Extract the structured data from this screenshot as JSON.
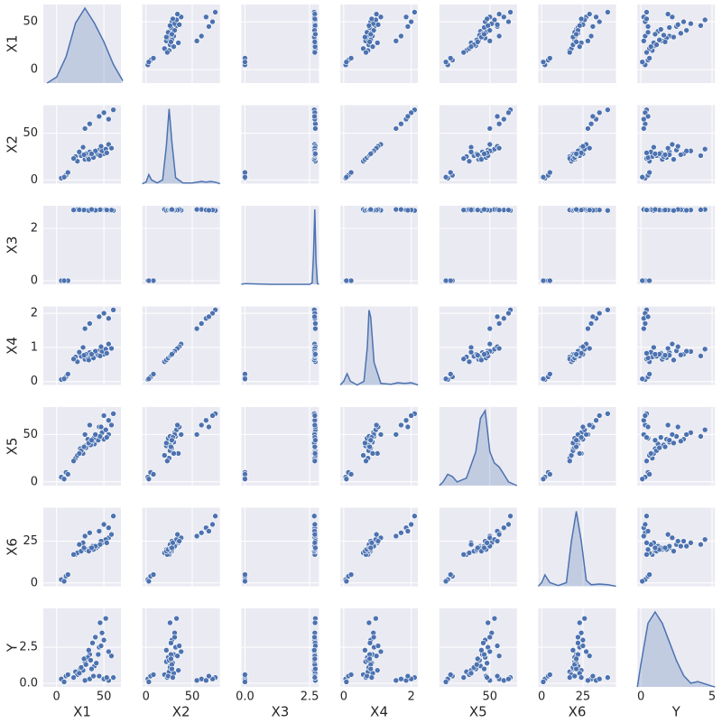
{
  "chart_data": {
    "type": "pairplot",
    "color": "#4c72b0",
    "grid": true,
    "variables": [
      {
        "name": "X1",
        "values": [
          5,
          10,
          12,
          8,
          35,
          55,
          60,
          50,
          30,
          45,
          20,
          25,
          30,
          35,
          40,
          28,
          45,
          50,
          55,
          22,
          33,
          38,
          42,
          48,
          52,
          18,
          26,
          31,
          36,
          44,
          47,
          58,
          24,
          34,
          39,
          46,
          29,
          41,
          53,
          37
        ],
        "lim": [
          -14,
          68
        ],
        "xticks": [
          0,
          50
        ],
        "yticks": [
          0,
          50
        ],
        "kde": {
          "x": [
            -10,
            0,
            10,
            20,
            30,
            40,
            50,
            60,
            70
          ],
          "density": [
            0,
            0.08,
            0.35,
            0.8,
            1.0,
            0.8,
            0.55,
            0.25,
            0.03
          ]
        }
      },
      {
        "name": "X2",
        "values": [
          2,
          5,
          8,
          3,
          60,
          65,
          75,
          72,
          55,
          68,
          25,
          28,
          22,
          30,
          26,
          35,
          32,
          28,
          38,
          20,
          24,
          27,
          29,
          31,
          33,
          23,
          26,
          28,
          25,
          27,
          36,
          34,
          30,
          22,
          24,
          26,
          27,
          31,
          29,
          28
        ],
        "lim": [
          -4,
          80
        ],
        "xticks": [
          0,
          50
        ],
        "yticks": [
          0,
          50
        ],
        "kde": {
          "x": [
            -4,
            0,
            3,
            6,
            12,
            18,
            22,
            25,
            28,
            32,
            40,
            50,
            60,
            65,
            70,
            75,
            80
          ],
          "density": [
            0,
            0.02,
            0.12,
            0.05,
            0.01,
            0.05,
            0.5,
            1.0,
            0.55,
            0.08,
            0.01,
            0.01,
            0.03,
            0.02,
            0.03,
            0.02,
            0
          ]
        }
      },
      {
        "name": "X3",
        "values": [
          0,
          0,
          0,
          0,
          2.72,
          2.7,
          2.68,
          2.7,
          2.72,
          2.69,
          2.7,
          2.71,
          2.69,
          2.72,
          2.7,
          2.68,
          2.71,
          2.7,
          2.69,
          2.72,
          2.7,
          2.71,
          2.69,
          2.7,
          2.72,
          2.7,
          2.71,
          2.7,
          2.69,
          2.7,
          2.72,
          2.7,
          2.71,
          2.68,
          2.7,
          2.71,
          2.7,
          2.69,
          2.7,
          2.72
        ],
        "lim": [
          -0.14,
          2.86
        ],
        "xticks": [
          {
            "value": 0,
            "label": "0.0"
          },
          {
            "value": 2.5,
            "label": "2.5"
          }
        ],
        "yticks": [
          0,
          2
        ],
        "kde": {
          "x": [
            -0.14,
            0,
            0.5,
            1,
            1.5,
            2,
            2.5,
            2.6,
            2.65,
            2.7,
            2.75,
            2.8,
            2.86
          ],
          "density": [
            0,
            0.01,
            0.005,
            0,
            0,
            0,
            0,
            0.02,
            0.4,
            1.0,
            0.3,
            0.01,
            0
          ]
        }
      },
      {
        "name": "X4",
        "values": [
          0.06,
          0.14,
          0.22,
          0.08,
          1.7,
          1.85,
          2.1,
          2.0,
          1.55,
          1.9,
          0.72,
          0.8,
          0.65,
          0.85,
          0.75,
          1.0,
          0.9,
          0.8,
          1.1,
          0.58,
          0.7,
          0.78,
          0.83,
          0.88,
          0.95,
          0.66,
          0.74,
          0.8,
          0.72,
          0.77,
          1.02,
          0.97,
          0.86,
          0.63,
          0.69,
          0.75,
          0.77,
          0.89,
          0.83,
          0.8
        ],
        "lim": [
          -0.1,
          2.2
        ],
        "xticks": [
          0,
          2
        ],
        "yticks": [
          0,
          1,
          2
        ],
        "kde": {
          "x": [
            -0.1,
            0,
            0.1,
            0.2,
            0.4,
            0.6,
            0.7,
            0.75,
            0.8,
            0.9,
            1.1,
            1.4,
            1.6,
            1.8,
            2.0,
            2.2
          ],
          "density": [
            0,
            0.05,
            0.15,
            0.05,
            0,
            0.05,
            0.5,
            1.0,
            0.9,
            0.3,
            0.02,
            0.01,
            0.03,
            0.02,
            0.03,
            0
          ]
        }
      },
      {
        "name": "X5",
        "values": [
          5,
          10,
          8,
          3,
          60,
          65,
          72,
          70,
          50,
          58,
          25,
          35,
          38,
          42,
          40,
          30,
          48,
          45,
          50,
          28,
          45,
          43,
          47,
          52,
          55,
          22,
          33,
          36,
          39,
          44,
          58,
          60,
          30,
          41,
          46,
          48,
          37,
          50,
          47,
          44
        ],
        "lim": [
          -4,
          79
        ],
        "xticks": [
          50
        ],
        "yticks": [
          0,
          50
        ],
        "kde": {
          "x": [
            -4,
            0,
            5,
            10,
            15,
            25,
            35,
            40,
            45,
            50,
            55,
            60,
            65,
            70,
            79
          ],
          "density": [
            0,
            0.05,
            0.15,
            0.12,
            0.05,
            0.1,
            0.45,
            0.9,
            1.0,
            0.45,
            0.3,
            0.25,
            0.15,
            0.05,
            0
          ]
        }
      },
      {
        "name": "X6",
        "values": [
          2,
          4,
          5,
          1,
          30,
          33,
          40,
          35,
          28,
          31,
          17,
          19,
          20,
          21,
          22,
          24,
          23,
          25,
          27,
          18,
          20,
          22,
          21,
          24,
          26,
          17,
          19,
          20,
          21,
          22,
          25,
          29,
          23,
          19,
          20,
          23,
          21,
          22,
          24,
          21
        ],
        "lim": [
          -2,
          45
        ],
        "xticks": [
          0,
          25
        ],
        "yticks": [
          0,
          25
        ],
        "kde": {
          "x": [
            -2,
            0,
            2,
            5,
            10,
            15,
            18,
            21,
            24,
            27,
            30,
            35,
            40,
            45
          ],
          "density": [
            0,
            0.05,
            0.15,
            0.05,
            0.01,
            0.05,
            0.6,
            1.0,
            0.6,
            0.08,
            0.02,
            0.03,
            0.02,
            0
          ]
        }
      },
      {
        "name": "Y",
        "values": [
          0.3,
          0.5,
          0.6,
          0.1,
          0.3,
          0.2,
          0.4,
          0.3,
          0.2,
          0.5,
          0.8,
          1.0,
          1.5,
          2.0,
          1.2,
          0.9,
          2.5,
          3.0,
          2.2,
          0.6,
          1.8,
          2.8,
          1.4,
          3.5,
          4.5,
          0.4,
          1.1,
          1.3,
          1.6,
          2.0,
          2.6,
          1.9,
          0.7,
          2.3,
          0.5,
          4.2,
          1.7,
          3.2,
          0.4,
          1.0
        ],
        "lim": [
          -0.25,
          5.2
        ],
        "xticks": [
          0,
          5
        ],
        "yticks": [
          {
            "value": 0,
            "label": "0.0"
          },
          {
            "value": 2.5,
            "label": "2.5"
          }
        ],
        "kde": {
          "x": [
            -0.25,
            0,
            0.5,
            1,
            1.5,
            2,
            2.5,
            3,
            3.5,
            4,
            4.5,
            5,
            5.2
          ],
          "density": [
            0,
            0.3,
            0.85,
            1.0,
            0.85,
            0.6,
            0.35,
            0.15,
            0.05,
            0.07,
            0.04,
            0.01,
            0
          ]
        }
      }
    ]
  }
}
